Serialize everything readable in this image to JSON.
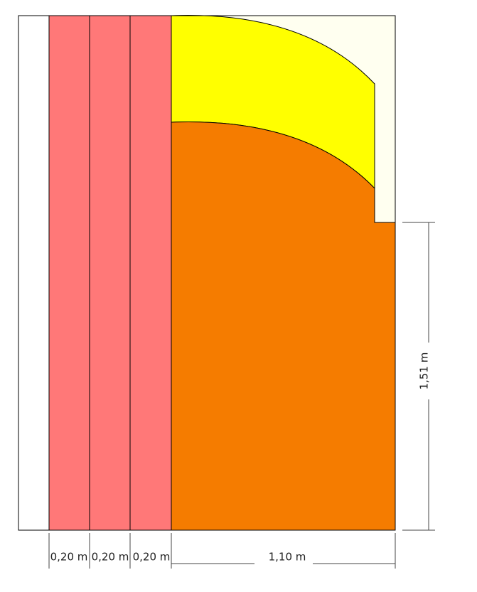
{
  "dimensions": {
    "horizontal": [
      "0,20 m",
      "0,20 m",
      "0,20 m",
      "1,10 m"
    ],
    "vertical": "1,51 m"
  }
}
